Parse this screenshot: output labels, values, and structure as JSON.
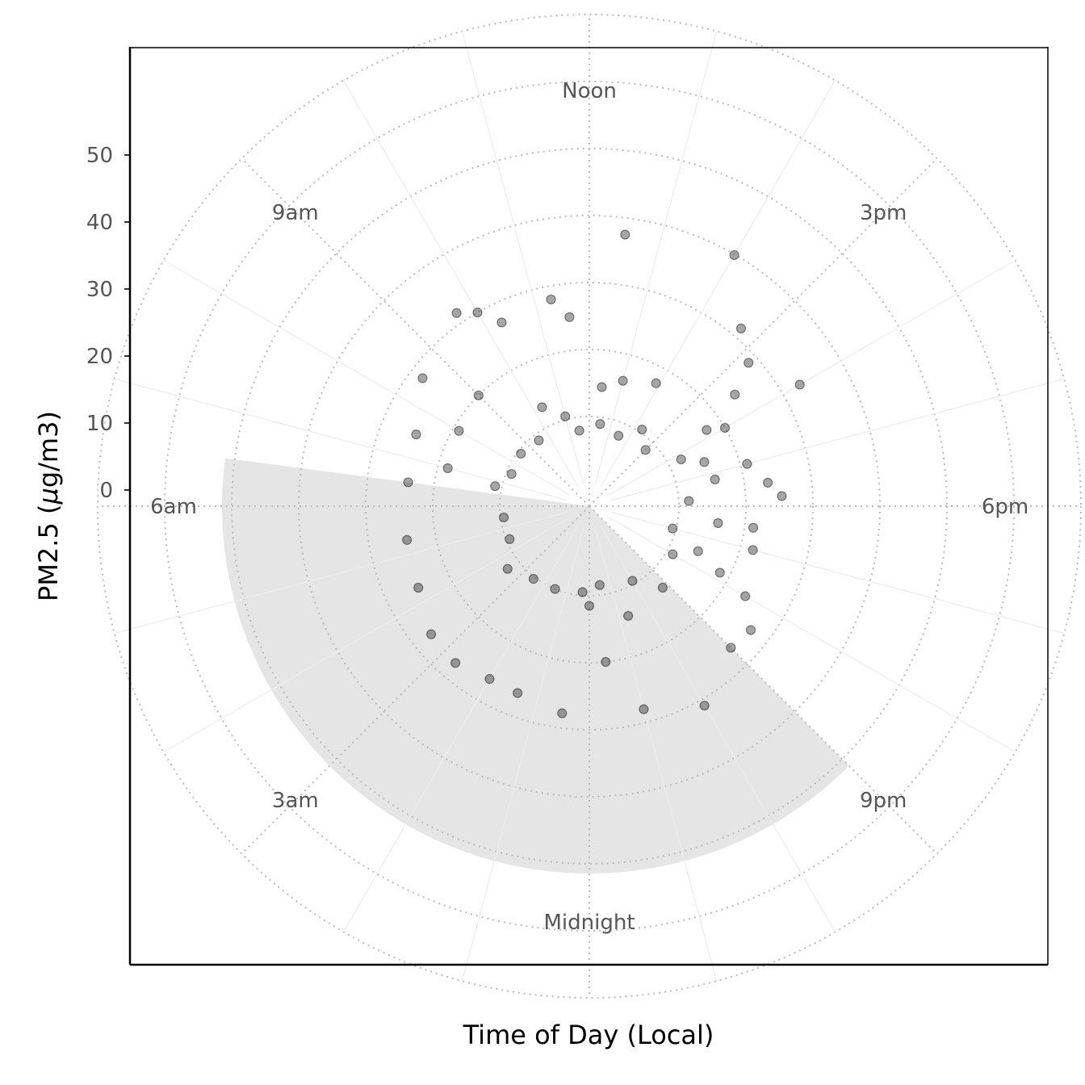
{
  "chart_data": {
    "type": "scatter",
    "coordinate_system": "polar",
    "xlabel": "Time of Day (Local)",
    "ylabel_prefix": "PM2.5 (",
    "ylabel_mu": "µ",
    "ylabel_suffix": "g/m3)",
    "y_ticks": [
      "0",
      "10",
      "20",
      "30",
      "40",
      "50"
    ],
    "y_tick_values": [
      0,
      10,
      20,
      30,
      40,
      50
    ],
    "rlim": [
      -10,
      60
    ],
    "hour_ticks": [
      {
        "hour": 0,
        "label": "Midnight"
      },
      {
        "hour": 3,
        "label": "3am"
      },
      {
        "hour": 6,
        "label": "6am"
      },
      {
        "hour": 9,
        "label": "9am"
      },
      {
        "hour": 12,
        "label": "Noon"
      },
      {
        "hour": 15,
        "label": "3pm"
      },
      {
        "hour": 18,
        "label": "6pm"
      },
      {
        "hour": 21,
        "label": "9pm"
      }
    ],
    "night_shade": {
      "start_hour": 21,
      "end_hour": 6.5,
      "color": "#e5e5e5"
    },
    "point_color": "#000000",
    "point_alpha": 0.35,
    "points": [
      {
        "hour": 12.5,
        "value": 27.5
      },
      {
        "hour": 14.0,
        "value": 29.9
      },
      {
        "hour": 14.7,
        "value": 21.5
      },
      {
        "hour": 15.2,
        "value": 18.6
      },
      {
        "hour": 15.5,
        "value": 14.0
      },
      {
        "hour": 16.0,
        "value": 22.9
      },
      {
        "hour": 16.0,
        "value": 10.0
      },
      {
        "hour": 17.5,
        "value": 13.5
      },
      {
        "hour": 17.8,
        "value": 15.4
      },
      {
        "hour": 17.0,
        "value": 11.0
      },
      {
        "hour": 18.5,
        "value": 11.3
      },
      {
        "hour": 19.0,
        "value": 11.9
      },
      {
        "hour": 19.8,
        "value": 8.5
      },
      {
        "hour": 20.0,
        "value": 13.5
      },
      {
        "hour": 20.5,
        "value": 17.0
      },
      {
        "hour": 21.0,
        "value": 16.5
      },
      {
        "hour": 22.0,
        "value": 21.0
      },
      {
        "hour": 23.0,
        "value": 18.0
      },
      {
        "hour": 23.6,
        "value": 10.0
      },
      {
        "hour": 0.5,
        "value": 17.8
      },
      {
        "hour": 1.4,
        "value": 16.5
      },
      {
        "hour": 2.0,
        "value": 16.4
      },
      {
        "hour": 2.7,
        "value": 17.4
      },
      {
        "hour": 3.4,
        "value": 17.0
      },
      {
        "hour": 4.3,
        "value": 14.9
      },
      {
        "hour": 5.3,
        "value": 14.3
      },
      {
        "hour": 6.5,
        "value": 13.9
      },
      {
        "hour": 7.0,
        "value": 8.5
      },
      {
        "hour": 7.5,
        "value": 14.6
      },
      {
        "hour": 8.0,
        "value": 9.1
      },
      {
        "hour": 8.5,
        "value": 18.0
      },
      {
        "hour": 9.0,
        "value": 10.0
      },
      {
        "hour": 9.7,
        "value": 21.6
      },
      {
        "hour": 10.0,
        "value": 20.0
      },
      {
        "hour": 10.3,
        "value": 17.0
      },
      {
        "hour": 11.3,
        "value": 18.0
      },
      {
        "hour": 11.6,
        "value": 15.0
      },
      {
        "hour": 12.4,
        "value": 4.5
      },
      {
        "hour": 13.0,
        "value": 6.0
      },
      {
        "hour": 13.9,
        "value": 7.5
      },
      {
        "hour": 15.8,
        "value": 7.5
      },
      {
        "hour": 16.6,
        "value": 5.0
      },
      {
        "hour": 17.2,
        "value": 5.8
      },
      {
        "hour": 18.5,
        "value": 6.0
      },
      {
        "hour": 19.5,
        "value": 4.2
      },
      {
        "hour": 21.2,
        "value": 3.0
      },
      {
        "hour": 22.7,
        "value": 4.0
      },
      {
        "hour": 0.0,
        "value": 1.5
      },
      {
        "hour": 3.5,
        "value": 2.0
      },
      {
        "hour": 6.8,
        "value": 1.0
      },
      {
        "hour": 10.3,
        "value": 3.0
      },
      {
        "hour": 11.0,
        "value": 0.5
      },
      {
        "hour": 14.3,
        "value": 0.5
      },
      {
        "hour": 16.2,
        "value": 2.0
      },
      {
        "hour": 17.8,
        "value": 1.5
      },
      {
        "hour": 20.0,
        "value": 1.0
      },
      {
        "hour": 0.3,
        "value": -0.5
      },
      {
        "hour": 1.5,
        "value": 0.0
      },
      {
        "hour": 2.5,
        "value": 0.3
      },
      {
        "hour": 4.5,
        "value": -0.5
      },
      {
        "hour": 5.5,
        "value": -0.5
      },
      {
        "hour": 7.5,
        "value": -0.8
      },
      {
        "hour": 8.5,
        "value": -0.5
      },
      {
        "hour": 9.5,
        "value": -1.0
      },
      {
        "hour": 11.5,
        "value": -2.0
      },
      {
        "hour": 12.5,
        "value": -1.0
      },
      {
        "hour": 13.5,
        "value": -2.0
      },
      {
        "hour": 15.0,
        "value": -1.5
      },
      {
        "hour": 19.0,
        "value": -0.5
      },
      {
        "hour": 22.0,
        "value": -0.5
      },
      {
        "hour": 23.5,
        "value": -1.5
      }
    ]
  }
}
